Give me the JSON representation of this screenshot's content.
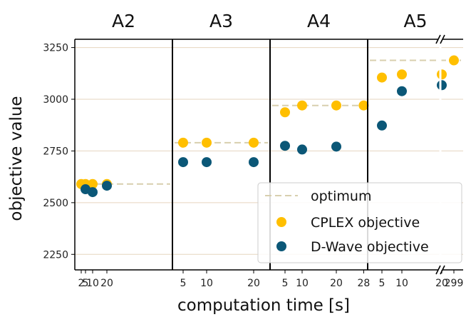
{
  "chart_data": {
    "type": "scatter",
    "xlabel": "computation time [s]",
    "ylabel": "objective value",
    "ylim": [
      2175,
      3290
    ],
    "yticks": [
      2250,
      2500,
      2750,
      3000,
      3250
    ],
    "grid": "horizontal",
    "colors": {
      "optimum": "#d8cfae",
      "cplex": "#ffbf00",
      "dwave": "#0b5777",
      "grid": "#e6d5bf",
      "frame": "#000000"
    },
    "legend": {
      "placement": "bottom-right",
      "entries": [
        {
          "key": "optimum",
          "label": "optimum"
        },
        {
          "key": "cplex",
          "label": "CPLEX objective"
        },
        {
          "key": "dwave",
          "label": "D-Wave objective"
        }
      ]
    },
    "panels": [
      {
        "title": "A2",
        "xticks": [
          "2",
          "5",
          "10",
          "20"
        ],
        "optimum": 2590,
        "cplex": [
          {
            "x": 2,
            "y": 2590
          },
          {
            "x": 5,
            "y": 2590
          },
          {
            "x": 10,
            "y": 2590
          },
          {
            "x": 20,
            "y": 2590
          }
        ],
        "dwave": [
          {
            "x": 5,
            "y": 2565
          },
          {
            "x": 10,
            "y": 2551
          },
          {
            "x": 20,
            "y": 2582
          }
        ]
      },
      {
        "title": "A3",
        "xticks": [
          "5",
          "10",
          "20"
        ],
        "optimum": 2790,
        "cplex": [
          {
            "x": 5,
            "y": 2790
          },
          {
            "x": 10,
            "y": 2790
          },
          {
            "x": 20,
            "y": 2790
          }
        ],
        "dwave": [
          {
            "x": 5,
            "y": 2696
          },
          {
            "x": 10,
            "y": 2696
          },
          {
            "x": 20,
            "y": 2696
          }
        ]
      },
      {
        "title": "A4",
        "xticks": [
          "5",
          "10",
          "20",
          "28"
        ],
        "optimum": 2970,
        "cplex": [
          {
            "x": 5,
            "y": 2937
          },
          {
            "x": 10,
            "y": 2970
          },
          {
            "x": 20,
            "y": 2970
          },
          {
            "x": 28,
            "y": 2970
          }
        ],
        "dwave": [
          {
            "x": 5,
            "y": 2775
          },
          {
            "x": 10,
            "y": 2757
          },
          {
            "x": 20,
            "y": 2771
          }
        ]
      },
      {
        "title": "A5",
        "xticks": [
          "5",
          "10",
          "20",
          "299"
        ],
        "axis_break": "between 20 and 299",
        "optimum": 3188,
        "cplex": [
          {
            "x": 5,
            "y": 3105
          },
          {
            "x": 10,
            "y": 3120
          },
          {
            "x": 20,
            "y": 3120
          },
          {
            "x": 299,
            "y": 3188
          }
        ],
        "dwave": [
          {
            "x": 5,
            "y": 2873
          },
          {
            "x": 10,
            "y": 3039
          },
          {
            "x": 20,
            "y": 3068
          }
        ]
      }
    ]
  }
}
